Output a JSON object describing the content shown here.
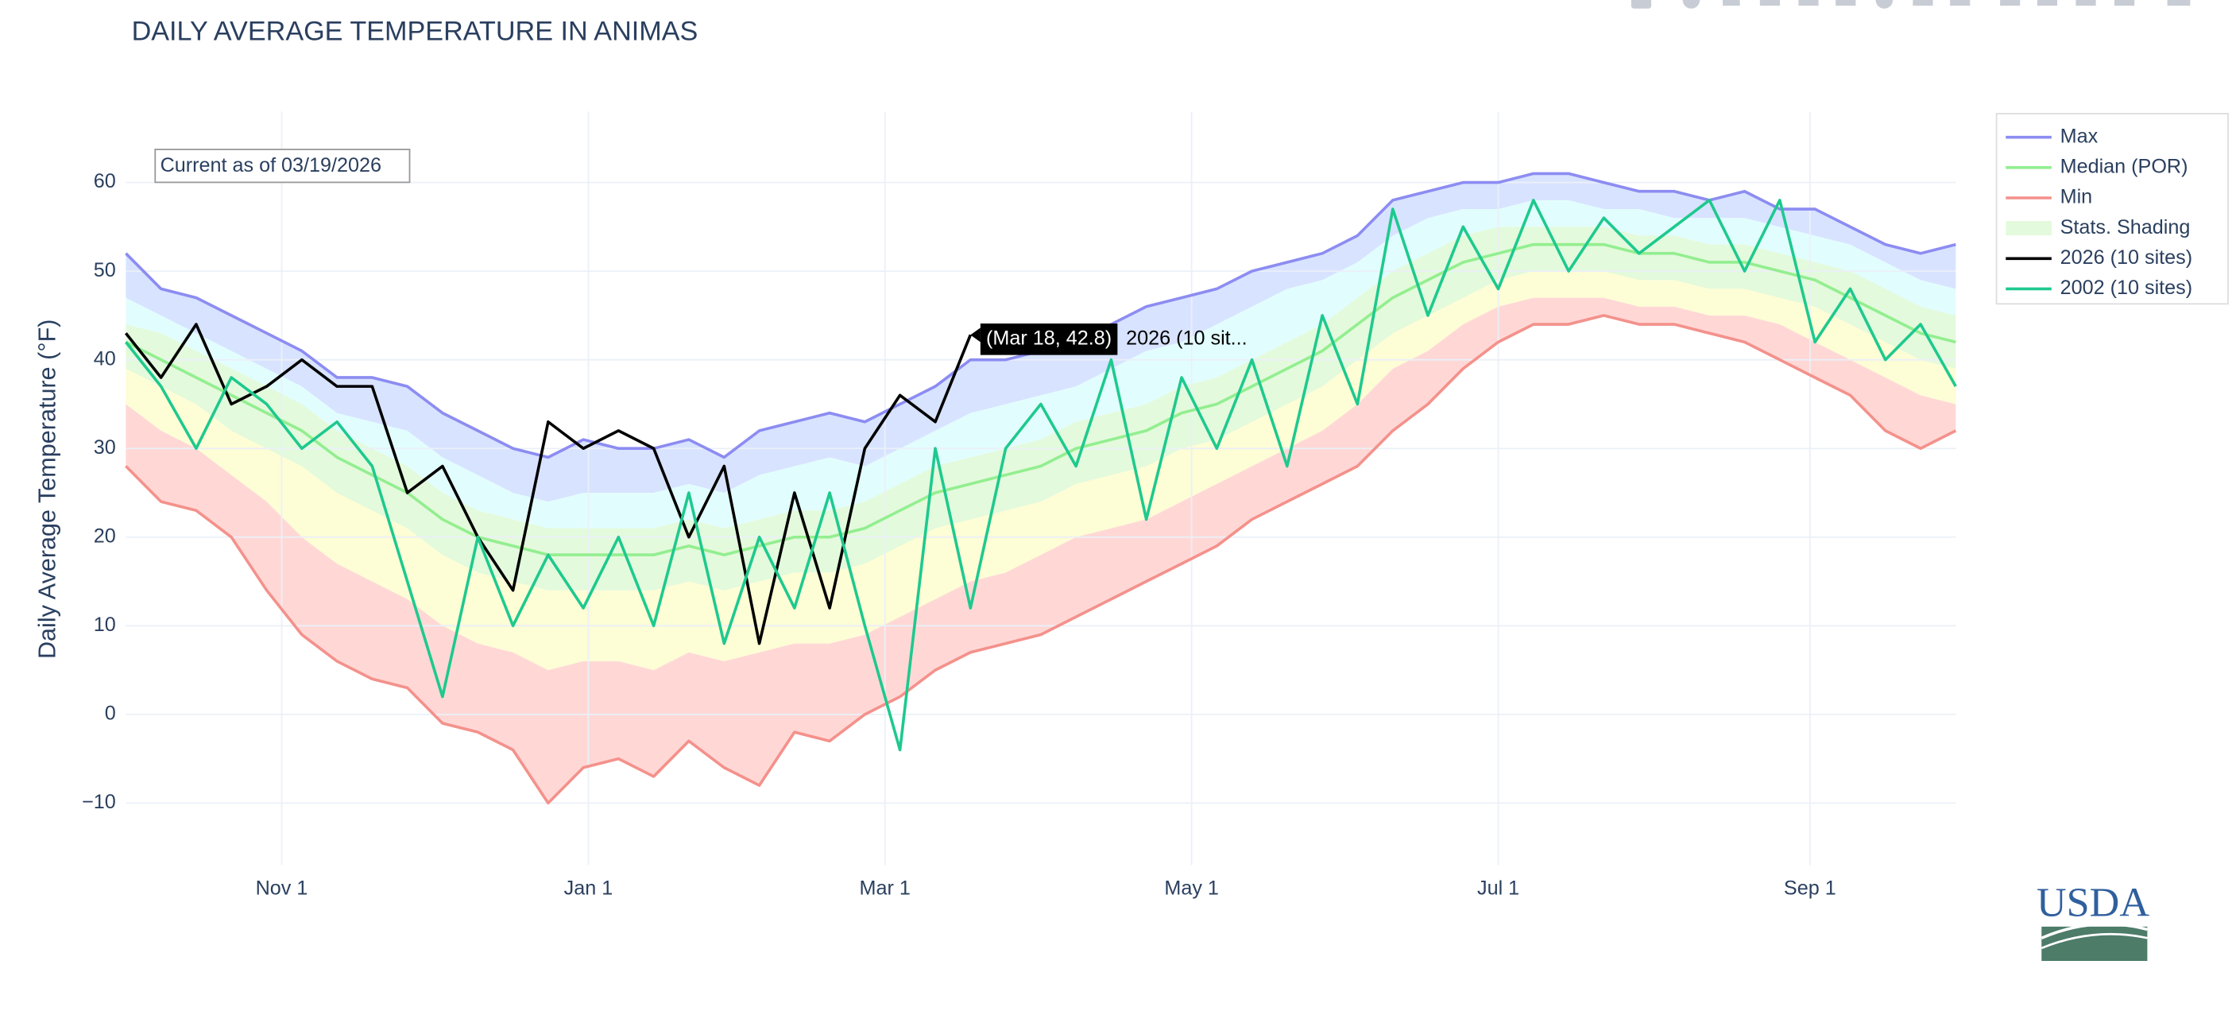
{
  "chart_data": {
    "type": "line",
    "title": "DAILY AVERAGE TEMPERATURE IN ANIMAS",
    "y_label": "Daily Average Temperature (°F)",
    "annotation": "Current as of 03/19/2026",
    "logo": "USDA",
    "hover": {
      "label": "(Mar 18, 42.8)",
      "name": "2026 (10 sit..."
    },
    "grid": true,
    "legend_position": "right",
    "x": [
      "Oct 1",
      "Oct 8",
      "Oct 15",
      "Oct 22",
      "Oct 29",
      "Nov 5",
      "Nov 12",
      "Nov 19",
      "Nov 26",
      "Dec 3",
      "Dec 10",
      "Dec 17",
      "Dec 24",
      "Dec 31",
      "Jan 7",
      "Jan 14",
      "Jan 21",
      "Jan 28",
      "Feb 4",
      "Feb 11",
      "Feb 18",
      "Feb 25",
      "Mar 4",
      "Mar 11",
      "Mar 18",
      "Mar 25",
      "Apr 1",
      "Apr 8",
      "Apr 15",
      "Apr 22",
      "Apr 29",
      "May 6",
      "May 13",
      "May 20",
      "May 27",
      "Jun 3",
      "Jun 10",
      "Jun 17",
      "Jun 24",
      "Jul 1",
      "Jul 8",
      "Jul 15",
      "Jul 22",
      "Jul 29",
      "Aug 5",
      "Aug 12",
      "Aug 19",
      "Aug 26",
      "Sep 2",
      "Sep 9",
      "Sep 16",
      "Sep 23",
      "Sep 30"
    ],
    "xlim": [
      "Oct 1",
      "Sep 30"
    ],
    "xticks": [
      "Nov 1",
      "Jan 1",
      "Mar 1",
      "May 1",
      "Jul 1",
      "Sep 1"
    ],
    "ylim": [
      -17,
      68
    ],
    "yticks": [
      {
        "value": -10,
        "label": "−10"
      },
      0,
      10,
      20,
      30,
      40,
      50,
      60
    ],
    "series": [
      {
        "name": "Max",
        "color": "#8c8cf2",
        "values": [
          52,
          48,
          47,
          45,
          43,
          41,
          38,
          38,
          37,
          34,
          32,
          30,
          29,
          31,
          30,
          30,
          31,
          29,
          32,
          33,
          34,
          33,
          35,
          37,
          40,
          40,
          41,
          42,
          44,
          46,
          47,
          48,
          50,
          51,
          52,
          54,
          58,
          59,
          60,
          60,
          61,
          61,
          60,
          59,
          59,
          58,
          59,
          57,
          57,
          55,
          53,
          52,
          53
        ]
      },
      {
        "name": "Median (POR)",
        "color": "#93ee90",
        "values": [
          42,
          40,
          38,
          36,
          34,
          32,
          29,
          27,
          25,
          22,
          20,
          19,
          18,
          18,
          18,
          18,
          19,
          18,
          19,
          20,
          20,
          21,
          23,
          25,
          26,
          27,
          28,
          30,
          31,
          32,
          34,
          35,
          37,
          39,
          41,
          44,
          47,
          49,
          51,
          52,
          53,
          53,
          53,
          52,
          52,
          51,
          51,
          50,
          49,
          47,
          45,
          43,
          42
        ]
      },
      {
        "name": "Min",
        "color": "#f4918b",
        "values": [
          28,
          24,
          23,
          20,
          14,
          9,
          6,
          4,
          3,
          -1,
          -2,
          -4,
          -10,
          -6,
          -5,
          -7,
          -3,
          -6,
          -8,
          -2,
          -3,
          0,
          2,
          5,
          7,
          8,
          9,
          11,
          13,
          15,
          17,
          19,
          22,
          24,
          26,
          28,
          32,
          35,
          39,
          42,
          44,
          44,
          45,
          44,
          44,
          43,
          42,
          40,
          38,
          36,
          32,
          30,
          32
        ]
      },
      {
        "name": "Stats. Shading",
        "color": "#e3fadc",
        "top_color": "#d8e3ff",
        "bands": [
          {
            "color": "#ffd8d6",
            "values": [
              35,
              32,
              30,
              27,
              24,
              20,
              17,
              15,
              13,
              10,
              8,
              7,
              5,
              6,
              6,
              5,
              7,
              6,
              7,
              8,
              8,
              9,
              11,
              13,
              15,
              16,
              18,
              20,
              21,
              22,
              24,
              26,
              28,
              30,
              32,
              35,
              39,
              41,
              44,
              46,
              47,
              47,
              47,
              46,
              46,
              45,
              45,
              44,
              42,
              40,
              38,
              36,
              35
            ]
          },
          {
            "color": "#fdfdd6",
            "values": [
              39,
              37,
              35,
              32,
              30,
              28,
              25,
              23,
              21,
              18,
              16,
              15,
              14,
              14,
              14,
              14,
              15,
              14,
              15,
              16,
              16,
              17,
              19,
              21,
              22,
              23,
              24,
              26,
              27,
              28,
              30,
              31,
              33,
              35,
              37,
              40,
              43,
              45,
              47,
              49,
              50,
              50,
              50,
              49,
              49,
              48,
              48,
              47,
              46,
              44,
              42,
              40,
              39
            ]
          },
          {
            "color": "#e3fadc",
            "values": [
              44,
              43,
              41,
              39,
              37,
              35,
              32,
              30,
              28,
              25,
              23,
              22,
              21,
              21,
              21,
              21,
              22,
              21,
              22,
              23,
              23,
              24,
              26,
              28,
              29,
              30,
              31,
              33,
              34,
              35,
              37,
              38,
              40,
              42,
              44,
              47,
              50,
              52,
              54,
              55,
              55,
              55,
              55,
              54,
              54,
              53,
              53,
              52,
              51,
              50,
              48,
              46,
              45
            ]
          },
          {
            "color": "#e2fdfd",
            "values": [
              47,
              45,
              43,
              41,
              39,
              37,
              34,
              33,
              32,
              29,
              27,
              25,
              24,
              25,
              25,
              25,
              26,
              25,
              27,
              28,
              29,
              28,
              30,
              32,
              34,
              35,
              36,
              37,
              39,
              41,
              42,
              44,
              46,
              48,
              49,
              51,
              54,
              56,
              57,
              57,
              58,
              58,
              57,
              57,
              56,
              56,
              56,
              55,
              54,
              53,
              51,
              49,
              48
            ]
          }
        ]
      },
      {
        "name": "2026 (10 sites)",
        "color": "#000000",
        "values": [
          43,
          38,
          44,
          35,
          37,
          40,
          37,
          37,
          25,
          28,
          20,
          14,
          33,
          30,
          32,
          30,
          20,
          28,
          8,
          25,
          12,
          30,
          36,
          33,
          42.8,
          null,
          null,
          null,
          null,
          null,
          null,
          null,
          null,
          null,
          null,
          null,
          null,
          null,
          null,
          null,
          null,
          null,
          null,
          null,
          null,
          null,
          null,
          null,
          null,
          null,
          null,
          null,
          null
        ]
      },
      {
        "name": "2002 (10 sites)",
        "color": "#1ec98e",
        "values": [
          42,
          37,
          30,
          38,
          35,
          30,
          33,
          28,
          15,
          2,
          20,
          10,
          18,
          12,
          20,
          10,
          25,
          8,
          20,
          12,
          25,
          10,
          -4,
          30,
          12,
          30,
          35,
          28,
          40,
          22,
          38,
          30,
          40,
          28,
          45,
          35,
          57,
          45,
          55,
          48,
          58,
          50,
          56,
          52,
          55,
          58,
          50,
          58,
          42,
          48,
          40,
          44,
          37
        ]
      }
    ]
  }
}
